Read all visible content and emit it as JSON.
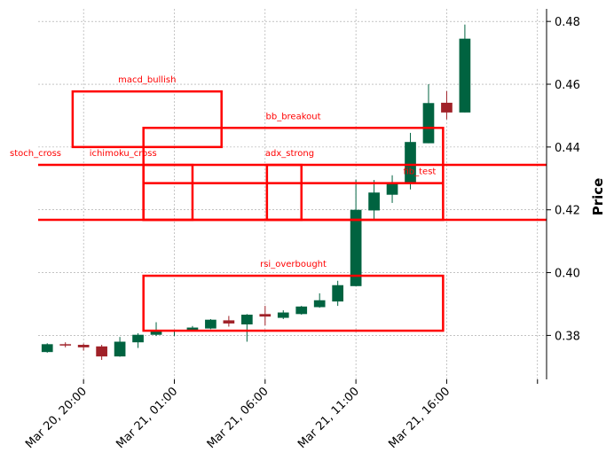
{
  "colors": {
    "up": "#006340",
    "down": "#a02128",
    "annotation": "#ff0000",
    "grid": "#a0a0a0",
    "axis": "#000000"
  },
  "chart_data": {
    "type": "candlestick",
    "title": "",
    "xlabel": "",
    "ylabel": "Price",
    "ylim": [
      0.366,
      0.484
    ],
    "y_axis_side": "right",
    "grid": true,
    "y_ticks": [
      0.38,
      0.4,
      0.42,
      0.44,
      0.46,
      0.48
    ],
    "y_tick_labels": [
      "0.38",
      "0.40",
      "0.42",
      "0.44",
      "0.46",
      "0.48"
    ],
    "x_ticks": [
      2,
      7,
      12,
      17,
      22,
      27
    ],
    "x_tick_labels": [
      "Mar 20, 20:00",
      "Mar 21, 01:00",
      "Mar 21, 06:00",
      "Mar 21, 11:00",
      "Mar 21, 16:00",
      ""
    ],
    "xlim": [
      -0.5,
      27.5
    ],
    "candles": [
      {
        "t": "Mar 20, 20:00",
        "open": 0.3747,
        "high": 0.3775,
        "low": 0.3745,
        "close": 0.3772
      },
      {
        "t": "Mar 20, 21:00",
        "open": 0.3772,
        "high": 0.3778,
        "low": 0.3762,
        "close": 0.3768
      },
      {
        "t": "Mar 20, 22:00",
        "open": 0.377,
        "high": 0.3774,
        "low": 0.3752,
        "close": 0.3762
      },
      {
        "t": "Mar 20, 23:00",
        "open": 0.3765,
        "high": 0.377,
        "low": 0.3722,
        "close": 0.3733
      },
      {
        "t": "Mar 21, 00:00",
        "open": 0.3733,
        "high": 0.3795,
        "low": 0.3732,
        "close": 0.378
      },
      {
        "t": "Mar 21, 01:00",
        "open": 0.3778,
        "high": 0.3807,
        "low": 0.376,
        "close": 0.3802
      },
      {
        "t": "Mar 21, 02:00",
        "open": 0.3802,
        "high": 0.3842,
        "low": 0.3798,
        "close": 0.3817
      },
      {
        "t": "Mar 21, 03:00",
        "open": 0.3815,
        "high": 0.3818,
        "low": 0.3798,
        "close": 0.3818
      },
      {
        "t": "Mar 21, 04:00",
        "open": 0.3818,
        "high": 0.383,
        "low": 0.3815,
        "close": 0.3825
      },
      {
        "t": "Mar 21, 05:00",
        "open": 0.3822,
        "high": 0.3852,
        "low": 0.382,
        "close": 0.385
      },
      {
        "t": "Mar 21, 06:00",
        "open": 0.3848,
        "high": 0.3862,
        "low": 0.3828,
        "close": 0.3838
      },
      {
        "t": "Mar 21, 07:00",
        "open": 0.3835,
        "high": 0.3868,
        "low": 0.378,
        "close": 0.3866
      },
      {
        "t": "Mar 21, 08:00",
        "open": 0.3868,
        "high": 0.3894,
        "low": 0.3832,
        "close": 0.386
      },
      {
        "t": "Mar 21, 09:00",
        "open": 0.3856,
        "high": 0.388,
        "low": 0.3852,
        "close": 0.3873
      },
      {
        "t": "Mar 21, 10:00",
        "open": 0.3868,
        "high": 0.3894,
        "low": 0.3866,
        "close": 0.3892
      },
      {
        "t": "Mar 21, 11:00",
        "open": 0.389,
        "high": 0.3934,
        "low": 0.3888,
        "close": 0.3912
      },
      {
        "t": "Mar 21, 12:00",
        "open": 0.3908,
        "high": 0.3974,
        "low": 0.3894,
        "close": 0.396
      },
      {
        "t": "Mar 21, 13:00",
        "open": 0.3957,
        "high": 0.4296,
        "low": 0.3957,
        "close": 0.42
      },
      {
        "t": "Mar 21, 14:00",
        "open": 0.4198,
        "high": 0.4295,
        "low": 0.417,
        "close": 0.4255
      },
      {
        "t": "Mar 21, 15:00",
        "open": 0.4248,
        "high": 0.431,
        "low": 0.4222,
        "close": 0.4285
      },
      {
        "t": "Mar 21, 16:00",
        "open": 0.4285,
        "high": 0.4445,
        "low": 0.4265,
        "close": 0.4416
      },
      {
        "t": "Mar 21, 17:00",
        "open": 0.4412,
        "high": 0.46,
        "low": 0.4412,
        "close": 0.454
      },
      {
        "t": "Mar 21, 18:00",
        "open": 0.4541,
        "high": 0.4578,
        "low": 0.4488,
        "close": 0.451
      },
      {
        "t": "Mar 21, 19:00",
        "open": 0.451,
        "high": 0.479,
        "low": 0.451,
        "close": 0.4745
      }
    ],
    "annotations": [
      {
        "label": "macd_bullish",
        "x0": 1.4,
        "x1": 9.6,
        "y0": 0.44,
        "y1": 0.4577,
        "kind": "box"
      },
      {
        "label": "bb_breakout",
        "x0": 5.3,
        "x1": 21.8,
        "y0": 0.4168,
        "y1": 0.4461,
        "kind": "box"
      },
      {
        "label": "stoch_cross",
        "x0": -0.5,
        "x1": 27.5,
        "y0": 0.4343,
        "y1": 0.4343,
        "kind": "line"
      },
      {
        "label": "ichimoku_cross",
        "x0": 5.3,
        "x1": 8.0,
        "y0": 0.4168,
        "y1": 0.4343,
        "kind": "box"
      },
      {
        "label": "adx_strong",
        "x0": 12.1,
        "x1": 14.0,
        "y0": 0.4168,
        "y1": 0.4343,
        "kind": "box"
      },
      {
        "label": "fib_test",
        "x0": 5.3,
        "x1": 21.8,
        "y0": 0.4285,
        "y1": 0.4285,
        "kind": "line"
      },
      {
        "label": "",
        "x0": -0.5,
        "x1": 27.5,
        "y0": 0.4168,
        "y1": 0.4168,
        "kind": "line"
      },
      {
        "label": "rsi_overbought",
        "x0": 5.3,
        "x1": 21.8,
        "y0": 0.3815,
        "y1": 0.399,
        "kind": "box"
      }
    ],
    "annotation_label_positions": {
      "macd_bullish": "above-center",
      "bb_breakout": "above-center",
      "stoch_cross": "above-left",
      "ichimoku_cross": "above-left",
      "adx_strong": "above-left",
      "fib_test": "above-right",
      "rsi_overbought": "above-center"
    }
  }
}
